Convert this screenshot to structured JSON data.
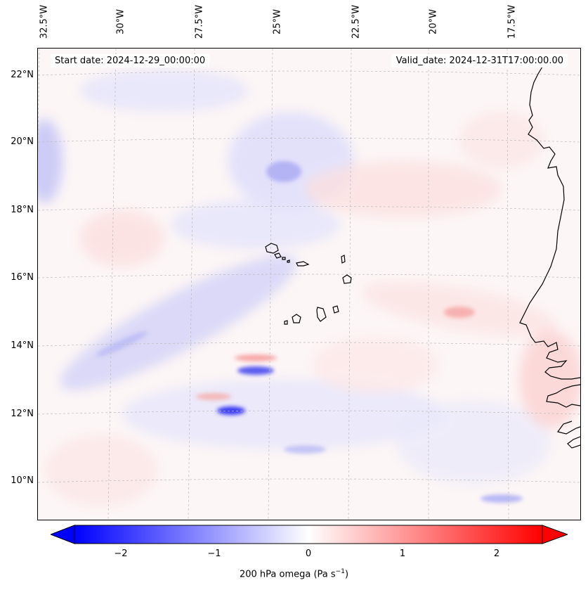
{
  "map": {
    "top_axis_labels": [
      "32.5°W",
      "30°W",
      "27.5°W",
      "25°W",
      "22.5°W",
      "20°W",
      "17.5°W"
    ],
    "left_axis_labels": [
      "22°N",
      "20°N",
      "18°N",
      "16°N",
      "14°N",
      "12°N",
      "10°N"
    ],
    "start_date": "Start date: 2024-12-29_00:00:00",
    "valid_date": "Valid_date: 2024-12-31T17:00:00.00",
    "field": "200 hPa omega",
    "colors": {
      "negative": "#0000ff",
      "positive": "#ff0000",
      "zero": "#ffffff",
      "coast": "#000000"
    }
  },
  "colorbar": {
    "ticks": [
      "−2",
      "−1",
      "0",
      "1",
      "2"
    ],
    "label_text": "200 hPa omega (Pa s",
    "label_sup": "−1",
    "label_close": ")",
    "range": [
      -2.7,
      2.7
    ]
  }
}
